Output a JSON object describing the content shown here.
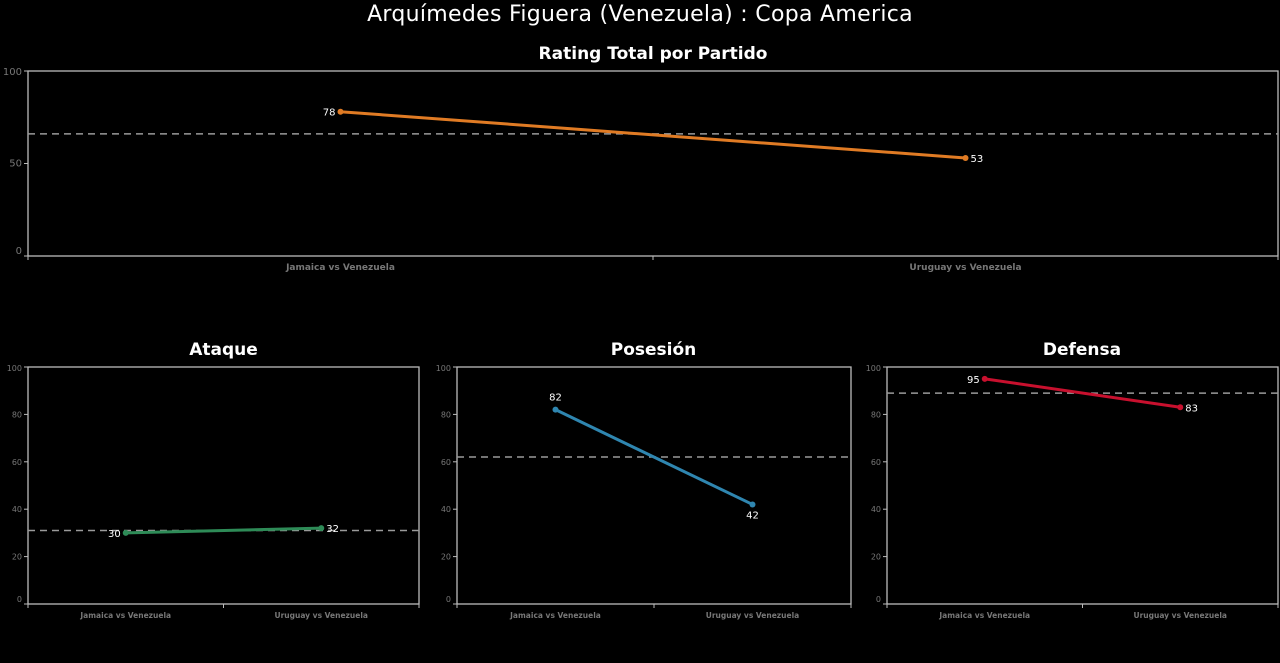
{
  "page": {
    "title": "Arquímedes Figuera (Venezuela) :  Copa  America"
  },
  "chart_data": [
    {
      "id": "total",
      "type": "line",
      "title": "Rating Total por Partido",
      "categories": [
        "Jamaica vs Venezuela",
        "Uruguay vs Venezuela"
      ],
      "values": [
        78,
        53
      ],
      "value_labels": [
        "78",
        "53"
      ],
      "average": 66,
      "ylim": [
        0,
        100
      ],
      "yticks": [
        0,
        50,
        100
      ],
      "ytick_labels": [
        "0",
        "50",
        "100"
      ],
      "color": "#e07b24",
      "grid": false,
      "xlabel": "",
      "ylabel": ""
    },
    {
      "id": "ataque",
      "type": "line",
      "title": "Ataque",
      "categories": [
        "Jamaica vs Venezuela",
        "Uruguay vs Venezuela"
      ],
      "values": [
        30,
        32
      ],
      "value_labels": [
        "30",
        "32"
      ],
      "average": 31,
      "ylim": [
        0,
        100
      ],
      "yticks": [
        0,
        20,
        40,
        60,
        80,
        100
      ],
      "ytick_labels": [
        "0",
        "20",
        "40",
        "60",
        "80",
        "100"
      ],
      "color": "#2e8b57",
      "grid": false,
      "xlabel": "",
      "ylabel": ""
    },
    {
      "id": "posesion",
      "type": "line",
      "title": "Posesión",
      "categories": [
        "Jamaica vs Venezuela",
        "Uruguay vs Venezuela"
      ],
      "values": [
        82,
        42
      ],
      "value_labels": [
        "82",
        "42"
      ],
      "average": 62,
      "ylim": [
        0,
        100
      ],
      "yticks": [
        0,
        20,
        40,
        60,
        80,
        100
      ],
      "ytick_labels": [
        "0",
        "20",
        "40",
        "60",
        "80",
        "100"
      ],
      "color": "#2f86b0",
      "grid": false,
      "xlabel": "",
      "ylabel": ""
    },
    {
      "id": "defensa",
      "type": "line",
      "title": "Defensa",
      "categories": [
        "Jamaica vs Venezuela",
        "Uruguay vs Venezuela"
      ],
      "values": [
        95,
        83
      ],
      "value_labels": [
        "95",
        "83"
      ],
      "average": 89,
      "ylim": [
        0,
        100
      ],
      "yticks": [
        0,
        20,
        40,
        60,
        80,
        100
      ],
      "ytick_labels": [
        "0",
        "20",
        "40",
        "60",
        "80",
        "100"
      ],
      "color": "#c8102e",
      "grid": false,
      "xlabel": "",
      "ylabel": ""
    }
  ]
}
